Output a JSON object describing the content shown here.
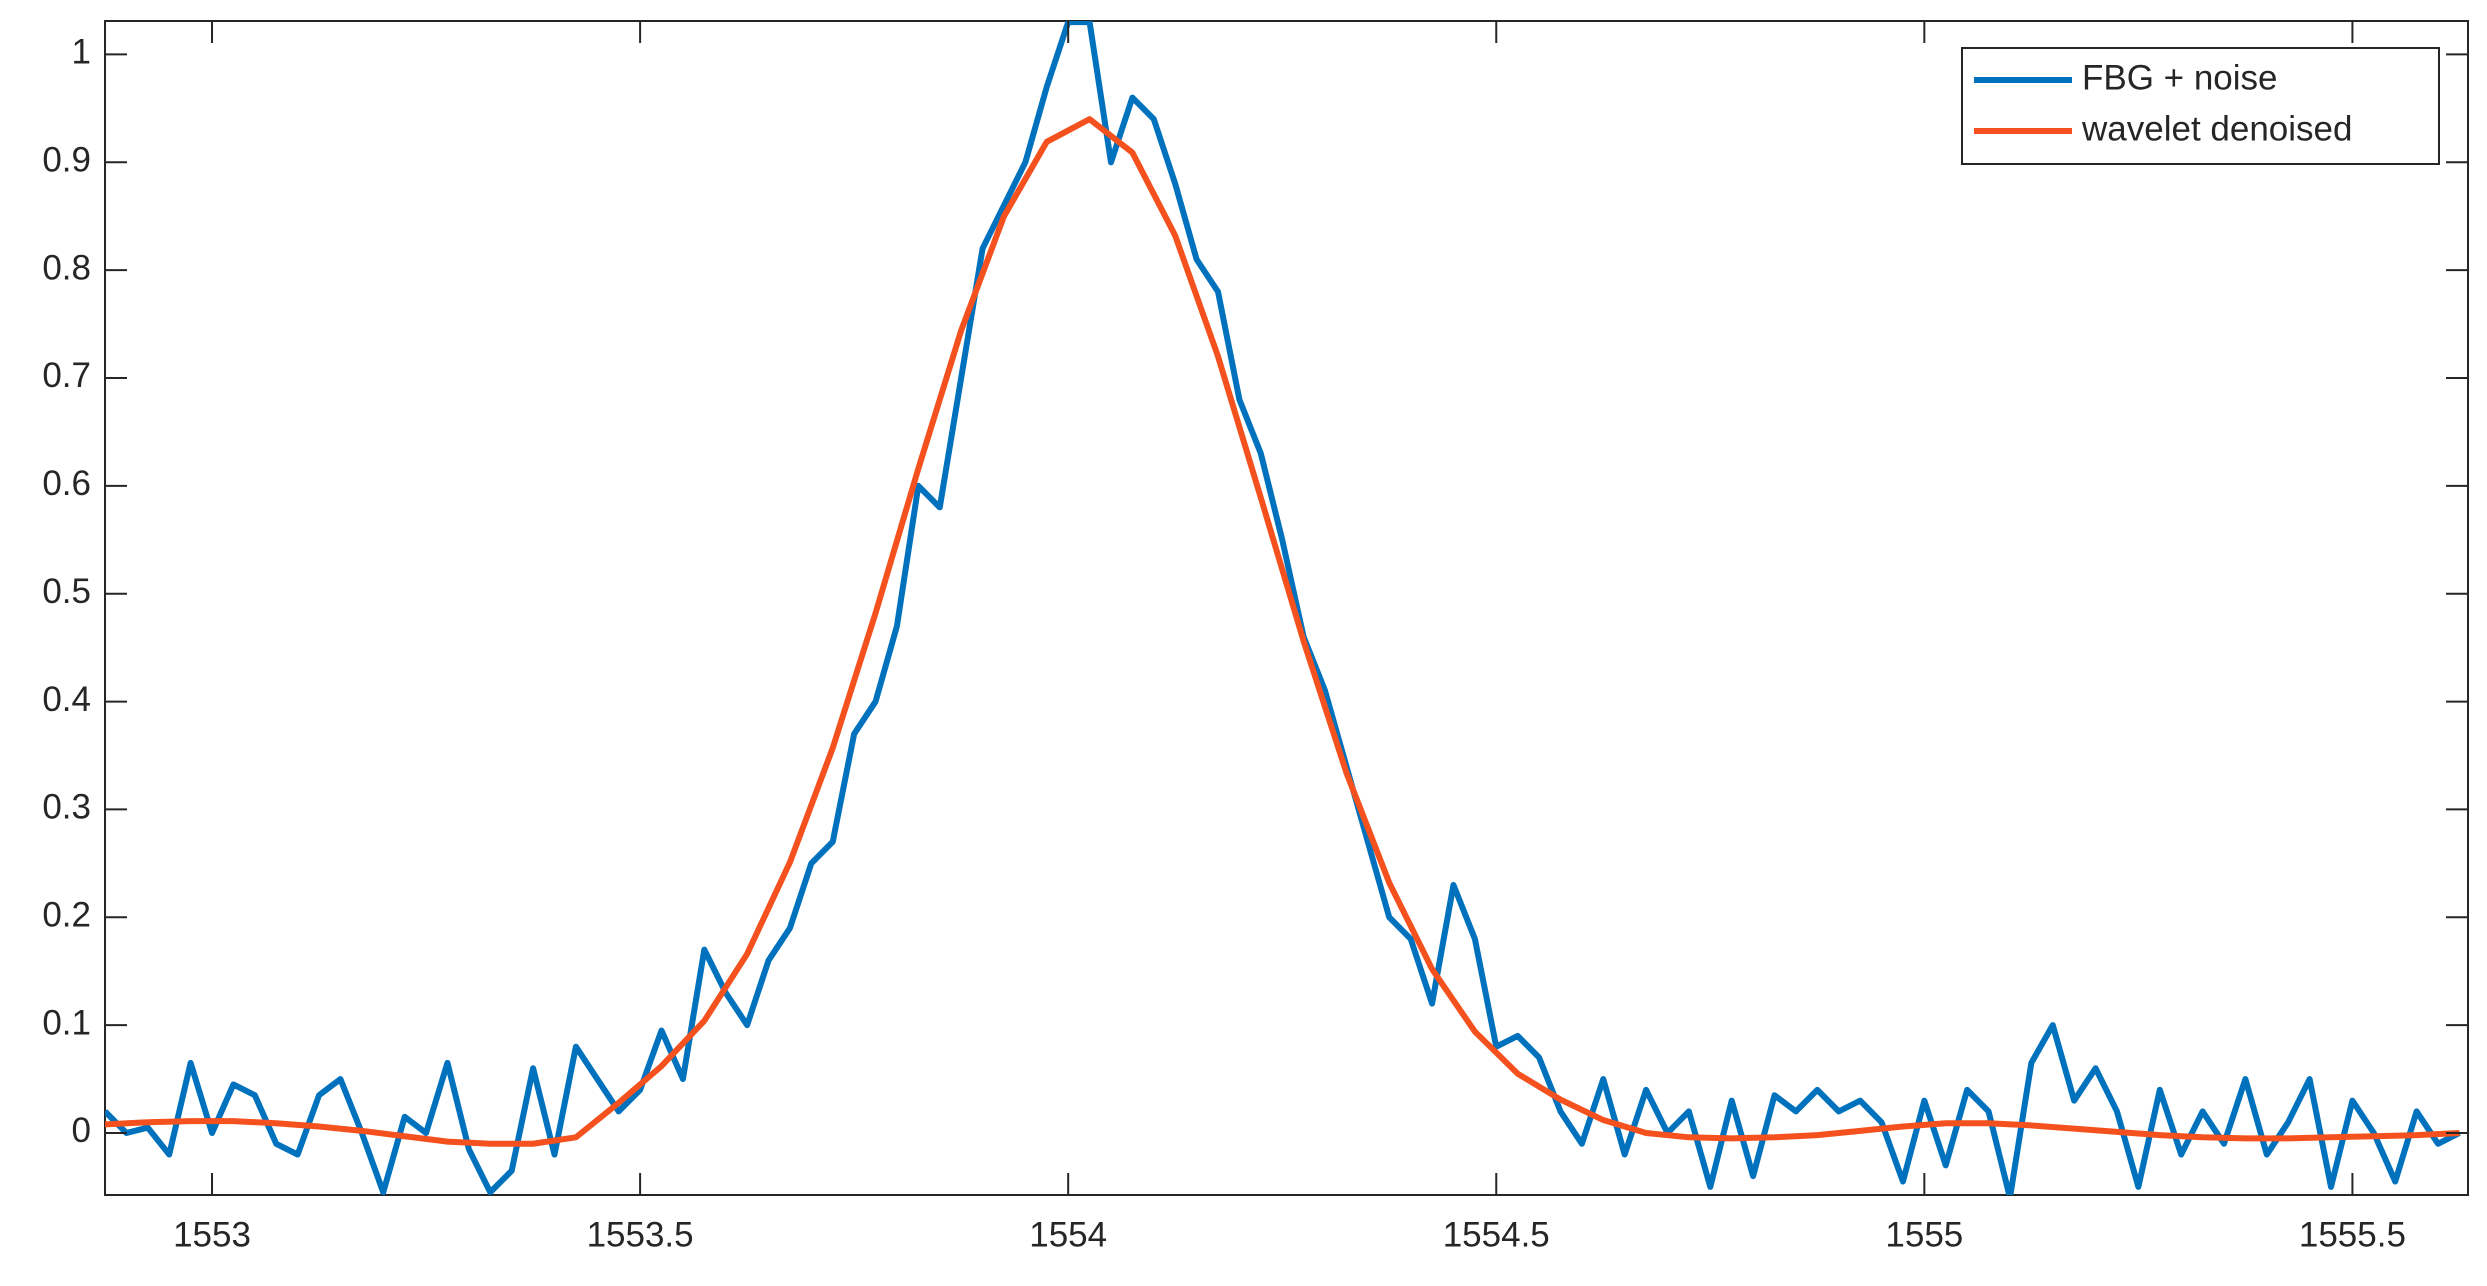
{
  "chart_data": {
    "type": "line",
    "xlim": [
      1552.875,
      1555.635
    ],
    "ylim": [
      -0.0575,
      1.031
    ],
    "xticks": [
      1553,
      1553.5,
      1554,
      1554.5,
      1555,
      1555.5
    ],
    "yticks": [
      0,
      0.1,
      0.2,
      0.3,
      0.4,
      0.5,
      0.6,
      0.7,
      0.8,
      0.9,
      1
    ],
    "legend": "upper right",
    "series": [
      {
        "name": "FBG + noise",
        "color": "#0072BD",
        "x": [
          1552.875,
          1552.9,
          1552.925,
          1552.95,
          1552.975,
          1553,
          1553.025,
          1553.05,
          1553.075,
          1553.1,
          1553.125,
          1553.15,
          1553.175,
          1553.2,
          1553.225,
          1553.25,
          1553.275,
          1553.3,
          1553.325,
          1553.35,
          1553.375,
          1553.4,
          1553.425,
          1553.45,
          1553.475,
          1553.5,
          1553.525,
          1553.55,
          1553.575,
          1553.6,
          1553.625,
          1553.65,
          1553.675,
          1553.7,
          1553.725,
          1553.75,
          1553.775,
          1553.8,
          1553.825,
          1553.85,
          1553.875,
          1553.9,
          1553.925,
          1553.95,
          1553.975,
          1554,
          1554.025,
          1554.05,
          1554.075,
          1554.1,
          1554.125,
          1554.15,
          1554.175,
          1554.2,
          1554.225,
          1554.25,
          1554.275,
          1554.3,
          1554.325,
          1554.35,
          1554.375,
          1554.4,
          1554.425,
          1554.45,
          1554.475,
          1554.5,
          1554.525,
          1554.55,
          1554.575,
          1554.6,
          1554.625,
          1554.65,
          1554.675,
          1554.7,
          1554.725,
          1554.75,
          1554.775,
          1554.8,
          1554.825,
          1554.85,
          1554.875,
          1554.9,
          1554.925,
          1554.95,
          1554.975,
          1555,
          1555.025,
          1555.05,
          1555.075,
          1555.1,
          1555.125,
          1555.15,
          1555.175,
          1555.2,
          1555.225,
          1555.25,
          1555.275,
          1555.3,
          1555.325,
          1555.35,
          1555.375,
          1555.4,
          1555.425,
          1555.45,
          1555.475,
          1555.5,
          1555.525,
          1555.55,
          1555.575,
          1555.6,
          1555.625
        ],
        "values": [
          0.02,
          0,
          0.005,
          -0.02,
          0.065,
          0,
          0.045,
          0.035,
          -0.01,
          -0.02,
          0.035,
          0.05,
          0,
          -0.055,
          0.015,
          0,
          0.065,
          -0.015,
          -0.055,
          -0.035,
          0.06,
          -0.02,
          0.08,
          0.05,
          0.02,
          0.04,
          0.095,
          0.05,
          0.17,
          0.13,
          0.1,
          0.16,
          0.19,
          0.25,
          0.27,
          0.37,
          0.4,
          0.47,
          0.6,
          0.58,
          0.7,
          0.82,
          0.86,
          0.9,
          0.97,
          1.03,
          1.03,
          0.9,
          0.96,
          0.94,
          0.88,
          0.81,
          0.78,
          0.68,
          0.63,
          0.55,
          0.46,
          0.41,
          0.34,
          0.27,
          0.2,
          0.18,
          0.12,
          0.23,
          0.18,
          0.08,
          0.09,
          0.07,
          0.02,
          -0.01,
          0.05,
          -0.02,
          0.04,
          0,
          0.02,
          -0.05,
          0.03,
          -0.04,
          0.035,
          0.02,
          0.04,
          0.02,
          0.03,
          0.01,
          -0.045,
          0.03,
          -0.03,
          0.04,
          0.02,
          -0.06,
          0.065,
          0.1,
          0.03,
          0.06,
          0.02,
          -0.05,
          0.04,
          -0.02,
          0.02,
          -0.01,
          0.05,
          -0.02,
          0.01,
          0.05,
          -0.05,
          0.03,
          0,
          -0.045,
          0.02,
          -0.01,
          0
        ]
      },
      {
        "name": "wavelet denoised",
        "color": "#F4511E",
        "x": [
          1552.875,
          1552.925,
          1552.975,
          1553.025,
          1553.075,
          1553.125,
          1553.175,
          1553.225,
          1553.275,
          1553.325,
          1553.375,
          1553.425,
          1553.475,
          1553.525,
          1553.575,
          1553.625,
          1553.675,
          1553.725,
          1553.775,
          1553.825,
          1553.875,
          1553.925,
          1553.975,
          1554.025,
          1554.075,
          1554.125,
          1554.175,
          1554.225,
          1554.275,
          1554.325,
          1554.375,
          1554.425,
          1554.475,
          1554.525,
          1554.575,
          1554.625,
          1554.675,
          1554.725,
          1554.775,
          1554.825,
          1554.875,
          1554.925,
          1554.975,
          1555.025,
          1555.075,
          1555.125,
          1555.175,
          1555.225,
          1555.275,
          1555.325,
          1555.375,
          1555.425,
          1555.475,
          1555.525,
          1555.575,
          1555.625
        ],
        "values": [
          0.008,
          0.01,
          0.011,
          0.011,
          0.009,
          0.006,
          0.002,
          -0.003,
          -0.008,
          -0.01,
          -0.01,
          -0.004,
          0.028,
          0.062,
          0.104,
          0.166,
          0.251,
          0.357,
          0.482,
          0.616,
          0.744,
          0.85,
          0.919,
          0.94,
          0.909,
          0.832,
          0.72,
          0.589,
          0.456,
          0.334,
          0.232,
          0.152,
          0.094,
          0.055,
          0.031,
          0.012,
          0,
          -0.004,
          -0.005,
          -0.004,
          -0.002,
          0.002,
          0.006,
          0.009,
          0.009,
          0.007,
          0.004,
          0.001,
          -0.002,
          -0.004,
          -0.005,
          -0.005,
          -0.004,
          -0.003,
          -0.002,
          0
        ]
      }
    ]
  }
}
